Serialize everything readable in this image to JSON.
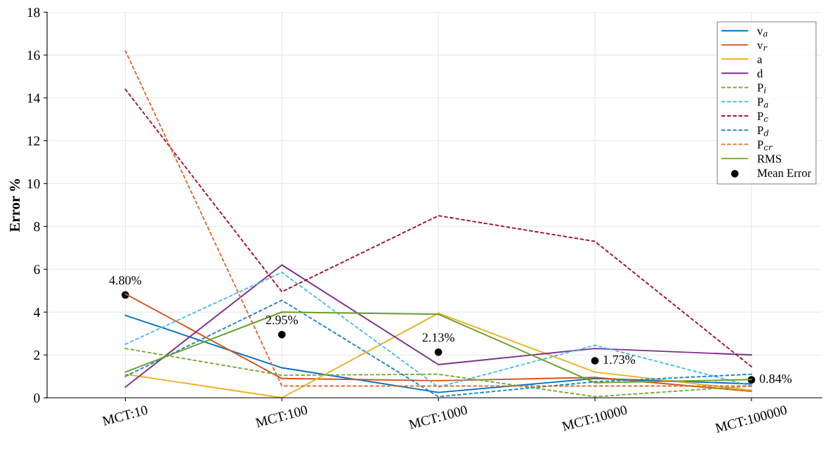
{
  "chart_data": {
    "type": "line",
    "ylabel": "Error %",
    "categories": [
      "MCT:10",
      "MCT:100",
      "MCT:1000",
      "MCT:10000",
      "MCT:100000"
    ],
    "ylim": [
      0,
      18
    ],
    "yticks": [
      0,
      2,
      4,
      6,
      8,
      10,
      12,
      14,
      16,
      18
    ],
    "grid": true,
    "legend": "top right",
    "series": [
      {
        "name": "v$_{a}$",
        "color": "#0072bd",
        "line_style": "solid",
        "values": [
          3.85,
          1.4,
          0.25,
          0.9,
          0.65
        ]
      },
      {
        "name": "v$_{r}$",
        "color": "#d95319",
        "line_style": "solid",
        "values": [
          4.85,
          0.9,
          0.8,
          0.95,
          0.3
        ]
      },
      {
        "name": "a",
        "color": "#edb120",
        "line_style": "solid",
        "values": [
          1.1,
          0.0,
          3.95,
          1.2,
          0.35
        ]
      },
      {
        "name": "d",
        "color": "#7e2f8e",
        "line_style": "solid",
        "values": [
          0.5,
          6.2,
          1.55,
          2.3,
          2.0
        ]
      },
      {
        "name": "P$_{i}$",
        "color": "#77ac30",
        "line_style": "dashed",
        "values": [
          2.3,
          1.05,
          1.1,
          0.05,
          0.55
        ]
      },
      {
        "name": "P$_{a}$",
        "color": "#4dbeee",
        "line_style": "dashed",
        "values": [
          2.5,
          5.85,
          0.5,
          2.45,
          0.55
        ]
      },
      {
        "name": "P$_{c}$",
        "color": "#a2142f",
        "line_style": "dashed",
        "values": [
          14.4,
          4.95,
          8.5,
          7.3,
          1.45
        ]
      },
      {
        "name": "P$_{d}$",
        "color": "#1f86c8",
        "line_style": "dashed",
        "values": [
          1.0,
          4.55,
          0.05,
          0.75,
          1.1
        ]
      },
      {
        "name": "P$_{cr}$",
        "color": "#e36a2e",
        "line_style": "dashed",
        "values": [
          16.2,
          0.55,
          0.55,
          0.55,
          0.55
        ]
      },
      {
        "name": "RMS",
        "color": "#6a9e2a",
        "line_style": "solid",
        "values": [
          1.2,
          4.0,
          3.9,
          0.7,
          0.85
        ]
      },
      {
        "name": "Mean Error",
        "type": "scatter",
        "marker": "circle",
        "color": "#000000",
        "values": [
          4.8,
          2.95,
          2.13,
          1.73,
          0.84
        ],
        "value_labels": [
          "4.80%",
          "2.95%",
          "2.13%",
          "1.73%",
          "0.84%"
        ]
      }
    ]
  }
}
